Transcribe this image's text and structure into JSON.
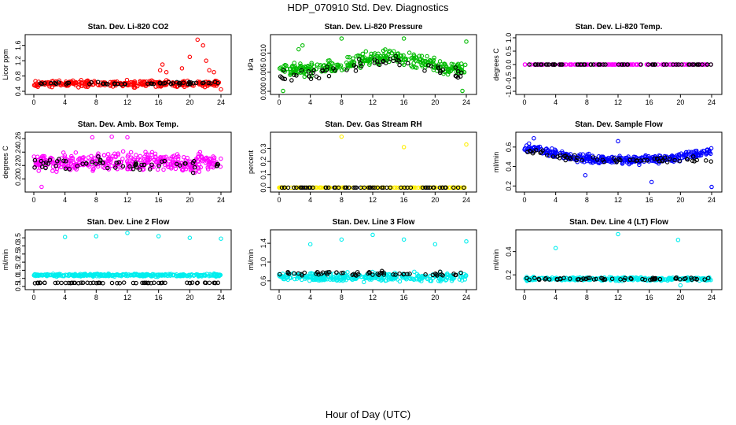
{
  "figure": {
    "title": "HDP_070910  Std. Dev. Diagnostics",
    "xlabel": "Hour of Day (UTC)"
  },
  "chart_data": [
    {
      "type": "scatter",
      "title": "Stan. Dev. Li-820 CO2",
      "ylabel": "Licor ppm",
      "xlim": [
        0,
        24
      ],
      "ylim": [
        0.4,
        1.8
      ],
      "xticks": [
        0,
        4,
        8,
        12,
        16,
        20,
        24
      ],
      "yticks": [
        0.4,
        0.8,
        1.2,
        1.6
      ],
      "ytick_labels": [
        "0.4",
        "0.8",
        "1.2",
        "1.6"
      ],
      "grid": false,
      "series": [
        {
          "color": "#ff0000",
          "band": {
            "base": 0.6,
            "spread": 0.12,
            "count": 300
          },
          "outliers": [
            [
              16.2,
              0.95
            ],
            [
              16.5,
              1.1
            ],
            [
              17.0,
              0.9
            ],
            [
              19.0,
              1.0
            ],
            [
              20.0,
              1.3
            ],
            [
              21.0,
              1.75
            ],
            [
              21.7,
              1.6
            ],
            [
              22.1,
              1.2
            ],
            [
              22.5,
              0.95
            ],
            [
              23.1,
              0.9
            ],
            [
              24.0,
              0.45
            ]
          ]
        },
        {
          "color": "#000000",
          "band": {
            "base": 0.61,
            "spread": 0.05,
            "count": 55
          },
          "outliers": []
        }
      ]
    },
    {
      "type": "scatter",
      "title": "Stan. Dev. Li-820 Pressure",
      "ylabel": "kPa",
      "xlim": [
        0,
        24
      ],
      "ylim": [
        0,
        0.014
      ],
      "xticks": [
        0,
        4,
        8,
        12,
        16,
        20,
        24
      ],
      "yticks": [
        0,
        0.005,
        0.01
      ],
      "ytick_labels": [
        "0.000",
        "0.005",
        "0.010"
      ],
      "grid": false,
      "series": [
        {
          "color": "#00bb00",
          "band": {
            "base": 0.0055,
            "spread": 0.0025,
            "count": 320,
            "hump": 0.0035,
            "hump_center": 14,
            "hump_width": 6
          },
          "outliers": [
            [
              2.5,
              0.011
            ],
            [
              3.0,
              0.012
            ],
            [
              8.0,
              0.0138
            ],
            [
              16.0,
              0.0138
            ],
            [
              24.0,
              0.013
            ],
            [
              0.5,
              0.0001
            ],
            [
              23.5,
              0.0001
            ]
          ]
        },
        {
          "color": "#000000",
          "band": {
            "base": 0.004,
            "spread": 0.0025,
            "count": 60,
            "hump": 0.004,
            "hump_center": 14,
            "hump_width": 6
          },
          "outliers": []
        }
      ]
    },
    {
      "type": "scatter",
      "title": "Stan. Dev. Li-820 Temp.",
      "ylabel": "degrees C",
      "xlim": [
        0,
        24
      ],
      "ylim": [
        -1,
        1
      ],
      "xticks": [
        0,
        4,
        8,
        12,
        16,
        20,
        24
      ],
      "yticks": [
        -1,
        -0.5,
        0,
        0.5,
        1
      ],
      "ytick_labels": [
        "-1.0",
        "-0.5",
        "0.0",
        "0.5",
        "1.0"
      ],
      "grid": false,
      "series": [
        {
          "color": "#ff00ff",
          "band": {
            "base": 0.0,
            "spread": 0.0,
            "count": 150
          },
          "outliers": []
        },
        {
          "color": "#000000",
          "band": {
            "base": 0.0,
            "spread": 0.0,
            "count": 60
          },
          "outliers": []
        }
      ]
    },
    {
      "type": "scatter",
      "title": "Stan. Dev. Amb. Box Temp.",
      "ylabel": "degrees C",
      "xlim": [
        0,
        24
      ],
      "ylim": [
        0.185,
        0.265
      ],
      "xticks": [
        0,
        4,
        8,
        12,
        16,
        20,
        24
      ],
      "yticks": [
        0.2,
        0.22,
        0.24,
        0.26
      ],
      "ytick_labels": [
        "0.20",
        "0.22",
        "0.24",
        "0.26"
      ],
      "grid": false,
      "series": [
        {
          "color": "#ff00ff",
          "band": {
            "base": 0.225,
            "spread": 0.02,
            "count": 380
          },
          "outliers": [
            [
              1.0,
              0.188
            ],
            [
              7.5,
              0.262
            ],
            [
              10.0,
              0.263
            ],
            [
              12.0,
              0.262
            ]
          ]
        },
        {
          "color": "#000000",
          "band": {
            "base": 0.222,
            "spread": 0.015,
            "count": 60
          },
          "outliers": []
        }
      ]
    },
    {
      "type": "scatter",
      "title": "Stan. Dev. Gas Stream RH",
      "ylabel": "percent",
      "xlim": [
        0,
        24
      ],
      "ylim": [
        -0.01,
        0.4
      ],
      "xticks": [
        0,
        4,
        8,
        12,
        16,
        20,
        24
      ],
      "yticks": [
        0,
        0.1,
        0.2,
        0.3
      ],
      "ytick_labels": [
        "0.0",
        "0.1",
        "0.2",
        "0.3"
      ],
      "grid": false,
      "series": [
        {
          "color": "#ffee00",
          "band": {
            "base": 0.0,
            "spread": 0.0,
            "count": 150
          },
          "outliers": [
            [
              0.0,
              0.0
            ],
            [
              8.0,
              0.39
            ],
            [
              16.0,
              0.31
            ],
            [
              24.0,
              0.33
            ]
          ]
        },
        {
          "color": "#000000",
          "band": {
            "base": 0.0,
            "spread": 0.0,
            "count": 60
          },
          "outliers": []
        }
      ]
    },
    {
      "type": "scatter",
      "title": "Stan. Dev. Sample Flow",
      "ylabel": "ml/min",
      "xlim": [
        0,
        24
      ],
      "ylim": [
        0.17,
        0.72
      ],
      "xticks": [
        0,
        4,
        8,
        12,
        16,
        20,
        24
      ],
      "yticks": [
        0.2,
        0.4,
        0.6
      ],
      "ytick_labels": [
        "0.2",
        "0.4",
        "0.6"
      ],
      "grid": false,
      "series": [
        {
          "color": "#0000ff",
          "band": {
            "base": 0.47,
            "spread": 0.06,
            "count": 340,
            "hump": 0.12,
            "hump_center": 0,
            "hump_width": 5,
            "hump2": 0.08,
            "hump2_center": 24,
            "hump2_width": 4
          },
          "outliers": [
            [
              1.2,
              0.69
            ],
            [
              7.8,
              0.31
            ],
            [
              12.0,
              0.66
            ],
            [
              16.3,
              0.24
            ],
            [
              24.0,
              0.19
            ]
          ]
        },
        {
          "color": "#000000",
          "band": {
            "base": 0.47,
            "spread": 0.04,
            "count": 60,
            "hump": 0.08,
            "hump_center": 0,
            "hump_width": 5
          },
          "outliers": []
        }
      ]
    },
    {
      "type": "scatter",
      "title": "Stan. Dev. Line 2 Flow",
      "ylabel": "ml/min",
      "xlim": [
        0,
        24
      ],
      "ylim": [
        0.5,
        3.8
      ],
      "xticks": [
        0,
        4,
        8,
        12,
        16,
        20,
        24
      ],
      "yticks": [
        0.5,
        1.0,
        1.5,
        2.0,
        2.5,
        3.0,
        3.5
      ],
      "ytick_labels": [
        "0.5",
        "1.0",
        "1.5",
        "2.0",
        "2.5",
        "3.0",
        "3.5"
      ],
      "grid": false,
      "series": [
        {
          "color": "#00eeee",
          "band": {
            "base": 1.2,
            "spread": 0.12,
            "count": 320
          },
          "outliers": [
            [
              4.0,
              3.55
            ],
            [
              8.0,
              3.6
            ],
            [
              12.0,
              3.8
            ],
            [
              16.0,
              3.6
            ],
            [
              20.0,
              3.5
            ],
            [
              24.0,
              3.45
            ]
          ]
        },
        {
          "color": "#000000",
          "band": {
            "base": 0.72,
            "spread": 0.03,
            "count": 60
          },
          "outliers": []
        }
      ]
    },
    {
      "type": "scatter",
      "title": "Stan. Dev. Line 3 Flow",
      "ylabel": "ml/min",
      "xlim": [
        0,
        24
      ],
      "ylim": [
        0.48,
        1.62
      ],
      "xticks": [
        0,
        4,
        8,
        12,
        16,
        20,
        24
      ],
      "yticks": [
        0.6,
        1.0,
        1.4
      ],
      "ytick_labels": [
        "0.6",
        "1.0",
        "1.4"
      ],
      "grid": false,
      "series": [
        {
          "color": "#00eeee",
          "band": {
            "base": 0.68,
            "spread": 0.13,
            "count": 340
          },
          "outliers": [
            [
              4.0,
              1.38
            ],
            [
              8.0,
              1.48
            ],
            [
              12.0,
              1.58
            ],
            [
              16.0,
              1.48
            ],
            [
              20.0,
              1.38
            ],
            [
              24.0,
              1.44
            ]
          ]
        },
        {
          "color": "#000000",
          "band": {
            "base": 0.75,
            "spread": 0.08,
            "count": 60
          },
          "outliers": []
        }
      ]
    },
    {
      "type": "scatter",
      "title": "Stan. Dev. Line 4 (LT) Flow",
      "ylabel": "ml/min",
      "xlim": [
        0,
        24
      ],
      "ylim": [
        0.1,
        0.56
      ],
      "xticks": [
        0,
        4,
        8,
        12,
        16,
        20,
        24
      ],
      "yticks": [
        0.2,
        0.4
      ],
      "ytick_labels": [
        "0.2",
        "0.4"
      ],
      "grid": false,
      "series": [
        {
          "color": "#00eeee",
          "band": {
            "base": 0.165,
            "spread": 0.02,
            "count": 320
          },
          "outliers": [
            [
              4.0,
              0.43
            ],
            [
              12.0,
              0.55
            ],
            [
              19.7,
              0.5
            ],
            [
              20.0,
              0.11
            ]
          ]
        },
        {
          "color": "#000000",
          "band": {
            "base": 0.165,
            "spread": 0.015,
            "count": 60
          },
          "outliers": []
        }
      ]
    }
  ]
}
